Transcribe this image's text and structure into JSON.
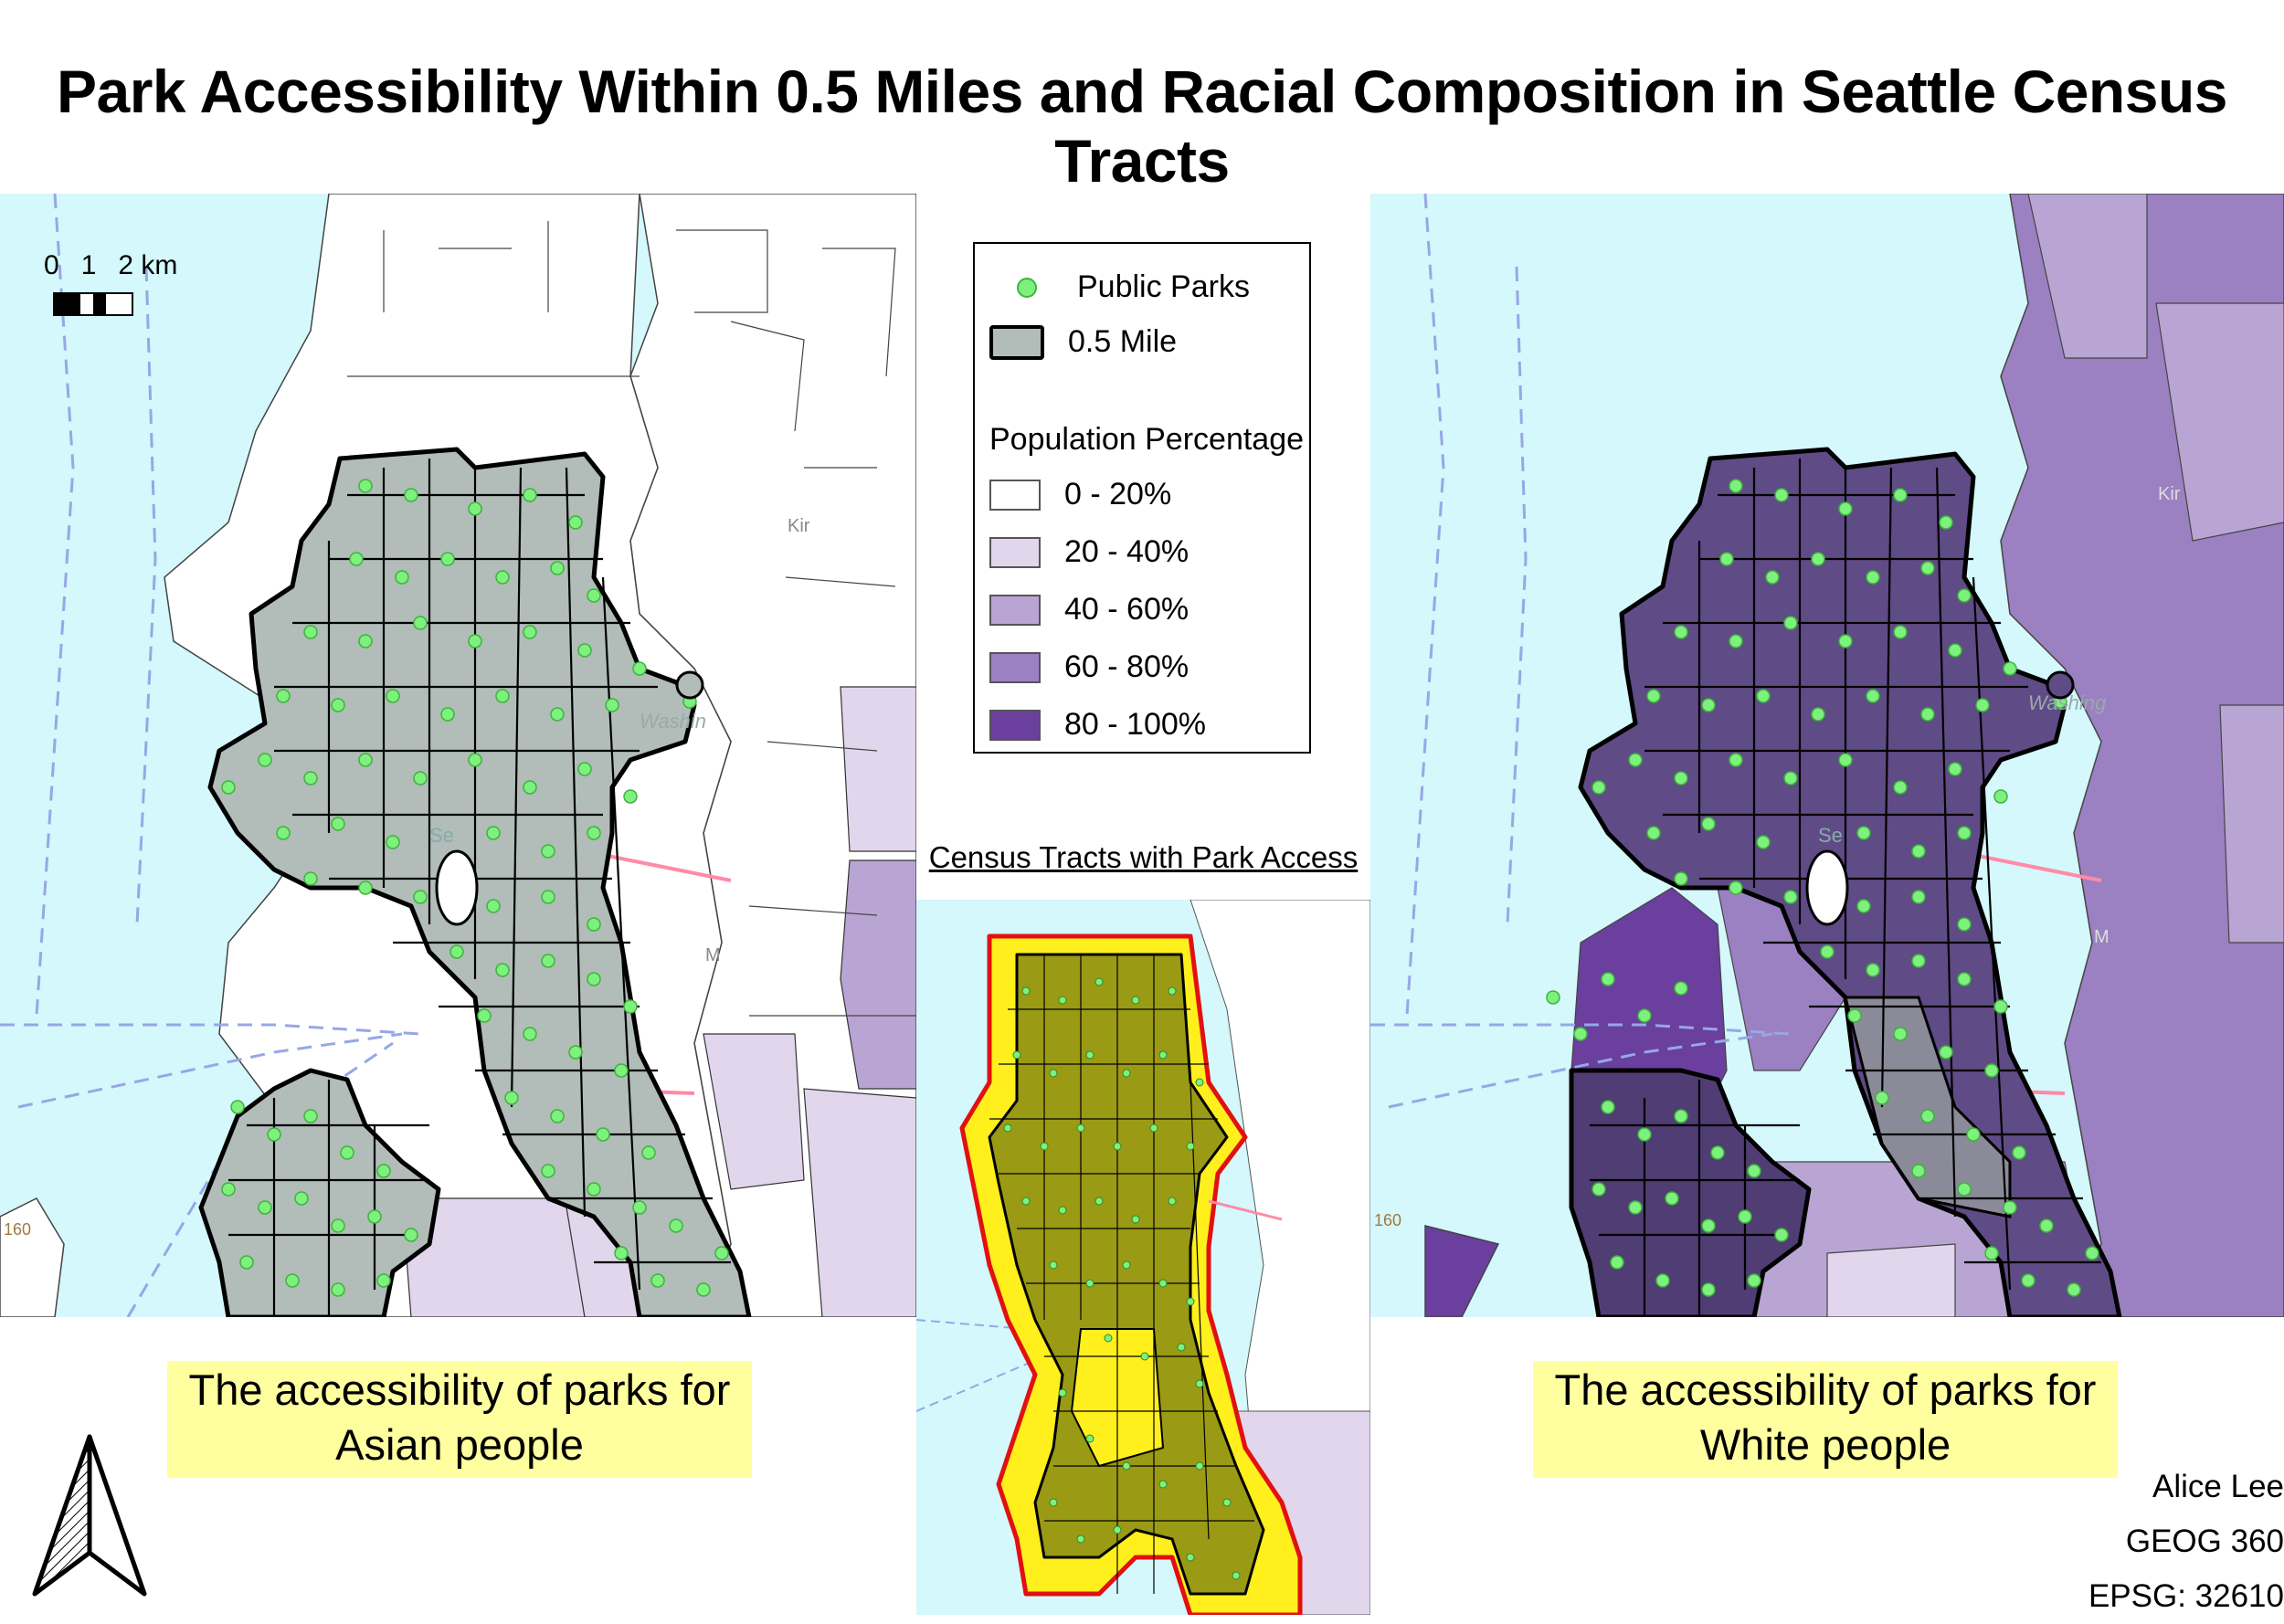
{
  "title": "Park Accessibility Within 0.5 Miles and Racial Composition in Seattle Census Tracts",
  "scale_bar": {
    "labels": [
      "0",
      "1",
      "2 km"
    ]
  },
  "legend": {
    "parks_label": "Public Parks",
    "buffer_label": "0.5 Mile",
    "population_heading": "Population Percentage",
    "classes": [
      {
        "label": "0 - 20%",
        "color": "#ffffff"
      },
      {
        "label": "20 - 40%",
        "color": "#e1d6ec"
      },
      {
        "label": "40 - 60%",
        "color": "#b9a5d3"
      },
      {
        "label": "60 - 80%",
        "color": "#9b80c2"
      },
      {
        "label": "80 - 100%",
        "color": "#6a3f9e"
      }
    ],
    "park_color": "#7ef07e",
    "buffer_color": "#b2bcb8"
  },
  "inset": {
    "title": "Census Tracts with Park Access"
  },
  "captions": {
    "left": [
      "The accessibility of parks for",
      "Asian people"
    ],
    "right": [
      "The accessibility of parks for",
      "White people"
    ]
  },
  "basemap_labels": {
    "left": [
      "Kir",
      "Washin",
      "Se",
      "M",
      "160"
    ],
    "right": [
      "Kir",
      "Washing",
      "Se",
      "M",
      "160"
    ]
  },
  "credits": [
    "Alice Lee",
    "GEOG 360",
    "EPSG: 32610"
  ],
  "icons": {
    "north": "north-arrow-icon"
  }
}
